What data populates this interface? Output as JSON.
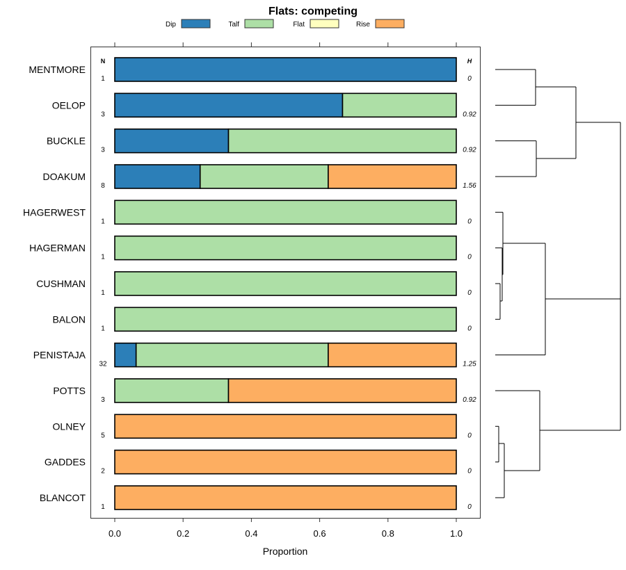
{
  "chart_data": {
    "type": "bar",
    "stacked": true,
    "orientation": "horizontal",
    "title": "Flats: competing",
    "xlabel": "Proportion",
    "xlim": [
      0,
      1
    ],
    "xticks": [
      "0.0",
      "0.2",
      "0.4",
      "0.6",
      "0.8",
      "1.0"
    ],
    "xtick_values": [
      0,
      0.2,
      0.4,
      0.6,
      0.8,
      1.0
    ],
    "n_header": "N",
    "h_header": "H",
    "legend_placement": "top",
    "series": [
      {
        "name": "Dip",
        "color": "#2c7fb8"
      },
      {
        "name": "Talf",
        "color": "#addfa6"
      },
      {
        "name": "Flat",
        "color": "#ffffbf"
      },
      {
        "name": "Rise",
        "color": "#fdae61"
      }
    ],
    "categories": [
      "MENTMORE",
      "OELOP",
      "BUCKLE",
      "DOAKUM",
      "HAGERWEST",
      "HAGERMAN",
      "CUSHMAN",
      "BALON",
      "PENISTAJA",
      "POTTS",
      "OLNEY",
      "GADDES",
      "BLANCOT"
    ],
    "n": [
      "1",
      "3",
      "3",
      "8",
      "1",
      "1",
      "1",
      "1",
      "32",
      "3",
      "5",
      "2",
      "1"
    ],
    "h": [
      "0",
      "0.92",
      "0.92",
      "1.56",
      "0",
      "0",
      "0",
      "0",
      "1.25",
      "0.92",
      "0",
      "0",
      "0"
    ],
    "values": [
      [
        1,
        0,
        0,
        0
      ],
      [
        0.667,
        0.333,
        0,
        0
      ],
      [
        0.333,
        0.667,
        0,
        0
      ],
      [
        0.25,
        0.375,
        0,
        0.375
      ],
      [
        0,
        1,
        0,
        0
      ],
      [
        0,
        1,
        0,
        0
      ],
      [
        0,
        1,
        0,
        0
      ],
      [
        0,
        1,
        0,
        0
      ],
      [
        0.0625,
        0.5625,
        0,
        0.375
      ],
      [
        0,
        0.333,
        0,
        0.667
      ],
      [
        0,
        0,
        0,
        1
      ],
      [
        0,
        0,
        0,
        1
      ],
      [
        0,
        0,
        0,
        1
      ]
    ]
  }
}
